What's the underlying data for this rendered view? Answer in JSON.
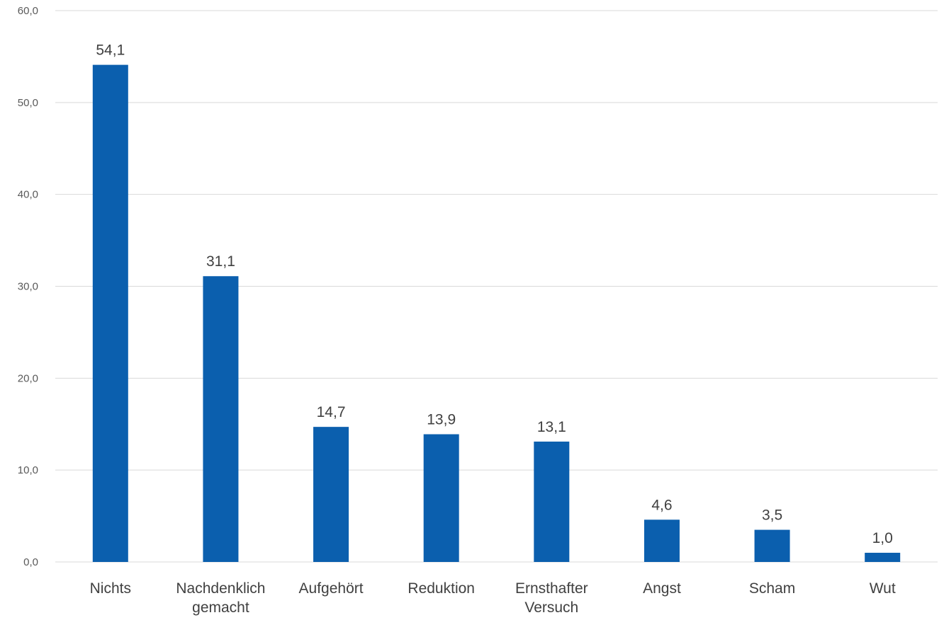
{
  "chart_data": {
    "type": "bar",
    "categories": [
      "Nichts",
      "Nachdenklich gemacht",
      "Aufgehört",
      "Reduktion",
      "Ernsthafter Versuch",
      "Angst",
      "Scham",
      "Wut"
    ],
    "category_lines": [
      [
        "Nichts"
      ],
      [
        "Nachdenklich",
        "gemacht"
      ],
      [
        "Aufgehört"
      ],
      [
        "Reduktion"
      ],
      [
        "Ernsthafter",
        "Versuch"
      ],
      [
        "Angst"
      ],
      [
        "Scham"
      ],
      [
        "Wut"
      ]
    ],
    "values": [
      54.1,
      31.1,
      14.7,
      13.9,
      13.1,
      4.6,
      3.5,
      1.0
    ],
    "data_labels": [
      "54,1",
      "31,1",
      "14,7",
      "13,9",
      "13,1",
      "4,6",
      "3,5",
      "1,0"
    ],
    "y_ticks": [
      0,
      10,
      20,
      30,
      40,
      50,
      60
    ],
    "y_tick_labels": [
      "0,0",
      "10,0",
      "20,0",
      "30,0",
      "40,0",
      "50,0",
      "60,0"
    ],
    "ylim": [
      0,
      60
    ],
    "title": "",
    "xlabel": "",
    "ylabel": "",
    "grid": true,
    "legend": "none",
    "bar_color": "#0b5fae"
  }
}
